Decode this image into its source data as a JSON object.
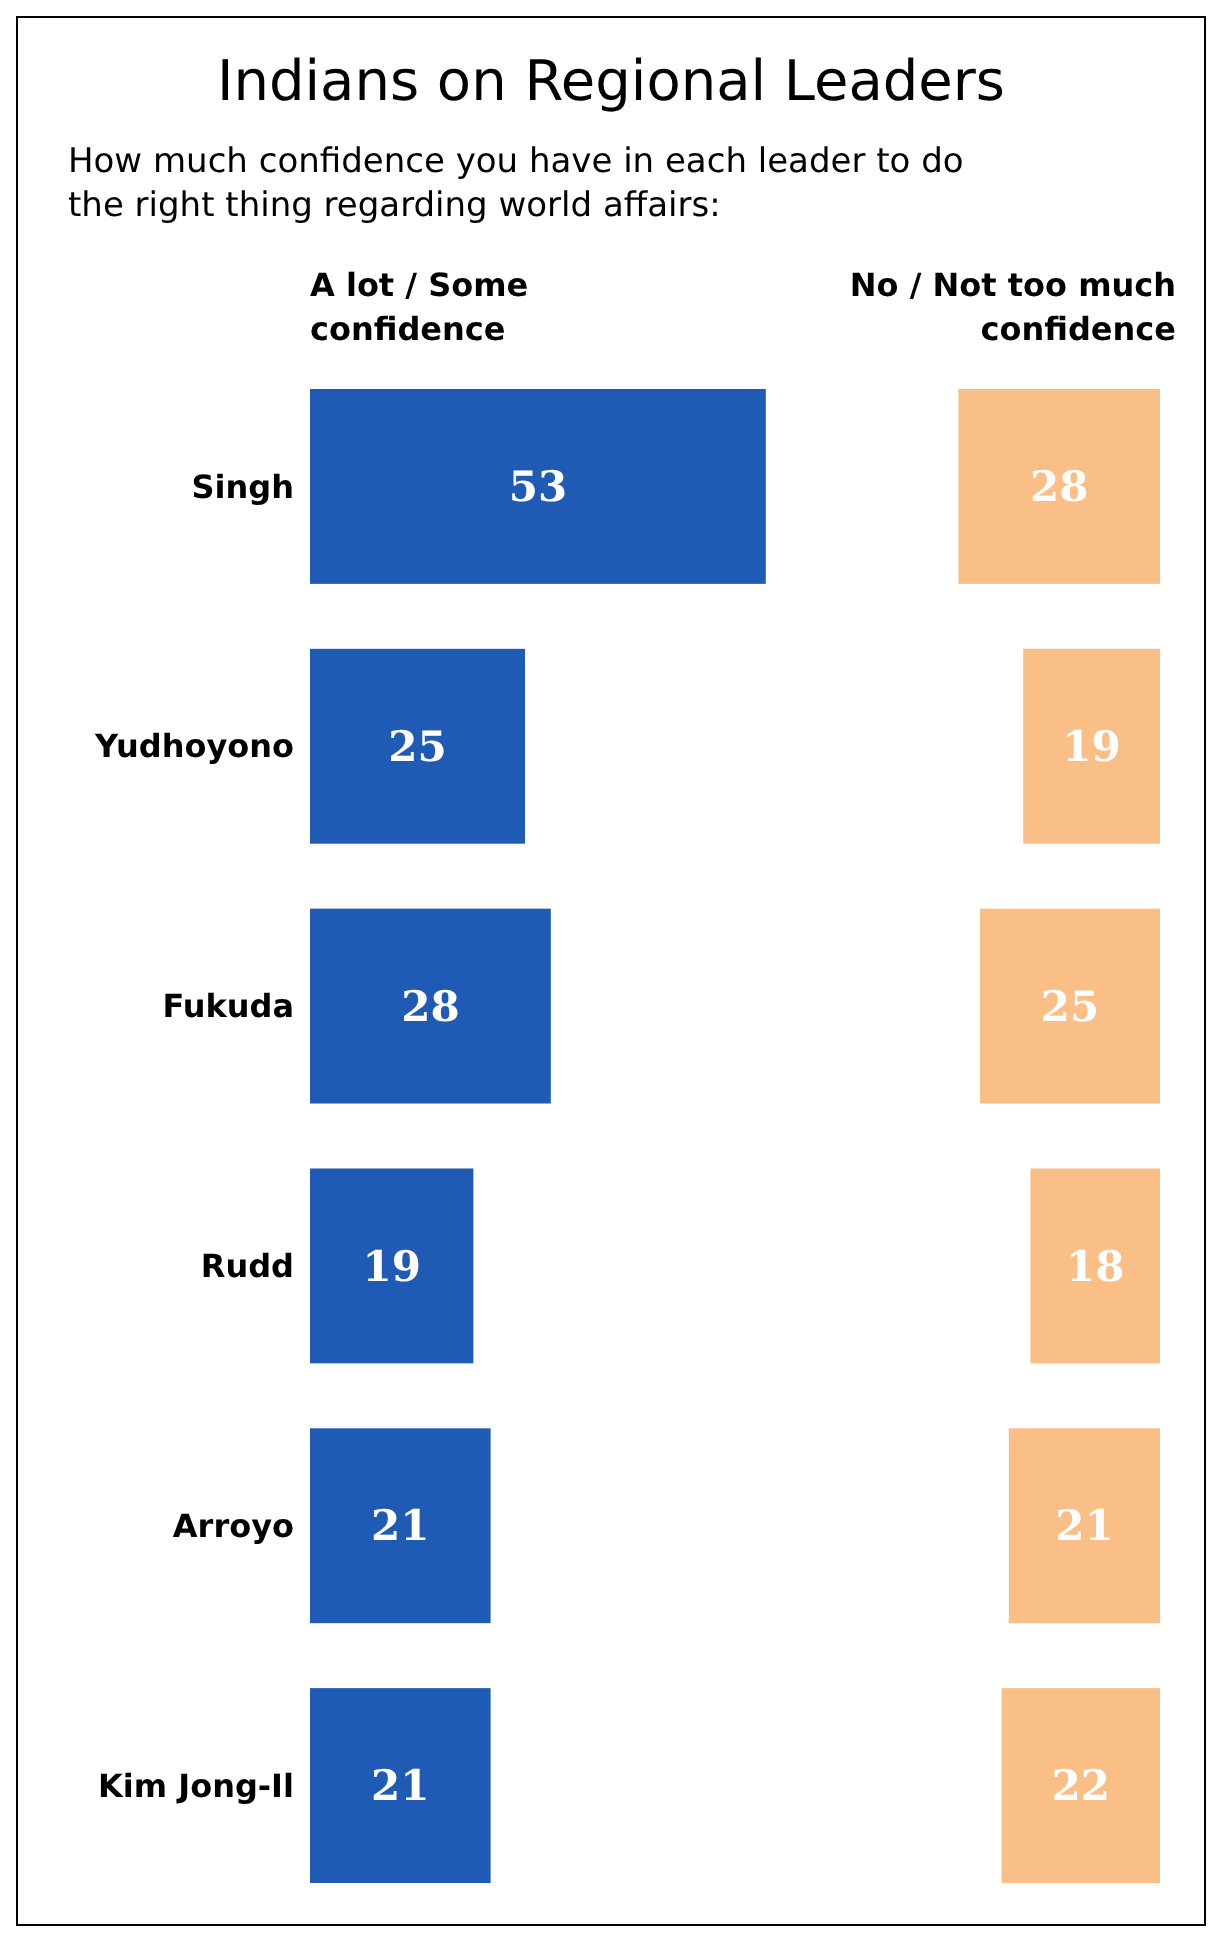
{
  "chart_data": [
    {
      "type": "bar",
      "orientation": "horizontal",
      "title": "Indians on Regional Leaders",
      "subtitle": "How much confidence you have in each leader to do the right thing regarding world affairs:",
      "categories": [
        "Singh",
        "Yudhoyono",
        "Fukuda",
        "Rudd",
        "Arroyo",
        "Kim Jong-Il"
      ],
      "series": [
        {
          "name": "A lot / Some confidence",
          "color": "#1f5bb5",
          "values": [
            53,
            25,
            28,
            19,
            21,
            21
          ]
        }
      ],
      "data_labels": true
    },
    {
      "type": "bar",
      "orientation": "horizontal",
      "categories": [
        null,
        null,
        null,
        null,
        null,
        null
      ],
      "series": [
        {
          "name": "No / Not too much confidence",
          "color": "#f9bf86",
          "values": [
            28,
            19,
            25,
            18,
            21,
            22
          ]
        }
      ],
      "data_labels": true
    }
  ]
}
